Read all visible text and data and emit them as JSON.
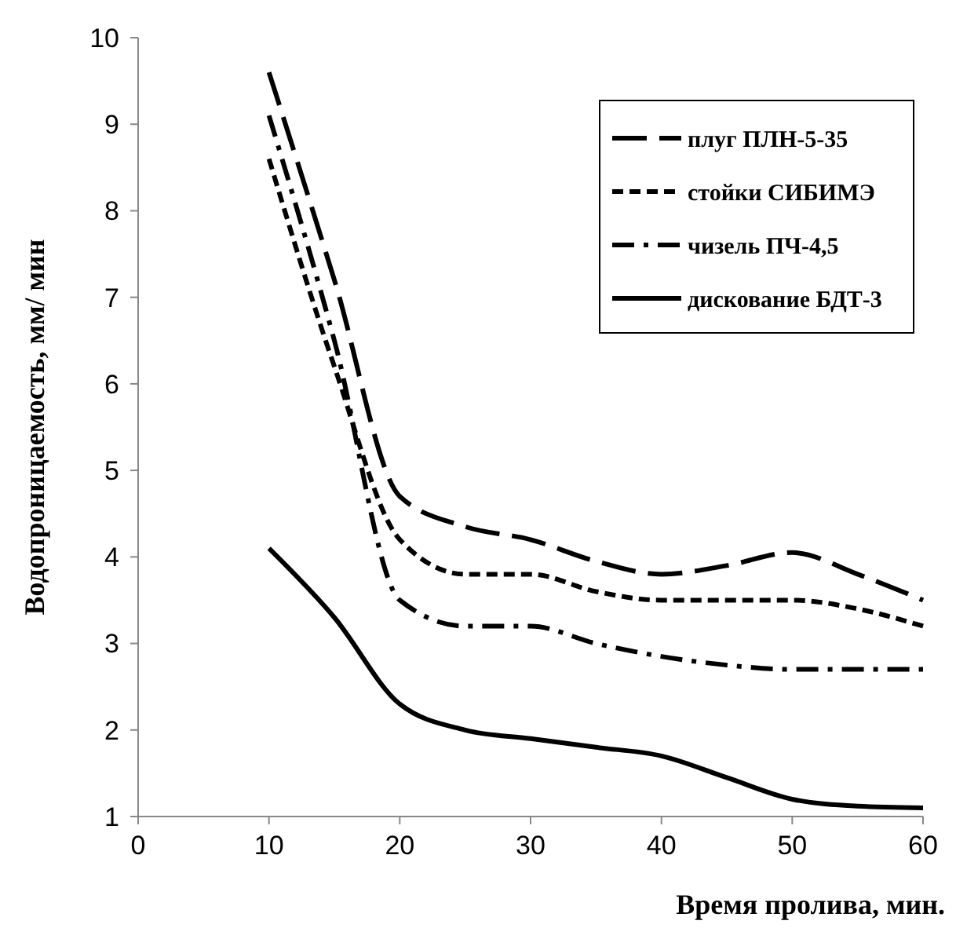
{
  "chart_data": {
    "type": "line",
    "xlabel": "Время пролива, мин.",
    "ylabel": "Водопроницаемость, мм/ мин",
    "x": [
      10,
      15,
      20,
      25,
      30,
      35,
      40,
      45,
      50,
      55,
      60
    ],
    "xlim": [
      0,
      60
    ],
    "xticks": [
      0,
      10,
      20,
      30,
      40,
      50,
      60
    ],
    "ylim": [
      1,
      10
    ],
    "yticks": [
      1,
      2,
      3,
      4,
      5,
      6,
      7,
      8,
      9,
      10
    ],
    "grid": false,
    "legend": "top right",
    "marker": "none",
    "series": [
      {
        "name": "плуг ПЛН-5-35",
        "color": "#000000",
        "line_style": "dashed",
        "values": [
          9.6,
          7.2,
          4.7,
          4.35,
          4.2,
          3.95,
          3.8,
          3.9,
          4.05,
          3.8,
          3.5
        ]
      },
      {
        "name": "стойки СИБИМЭ",
        "color": "#000000",
        "line_style": "dotted",
        "values": [
          8.6,
          6.2,
          4.2,
          3.8,
          3.8,
          3.6,
          3.5,
          3.5,
          3.5,
          3.4,
          3.2
        ]
      },
      {
        "name": "чизель ПЧ-4,5",
        "color": "#000000",
        "line_style": "dashdot",
        "values": [
          9.1,
          6.5,
          3.5,
          3.2,
          3.2,
          3.0,
          2.85,
          2.75,
          2.7,
          2.7,
          2.7
        ]
      },
      {
        "name": "дискование БДТ-3",
        "color": "#000000",
        "line_style": "solid",
        "values": [
          4.1,
          3.3,
          2.3,
          2.0,
          1.9,
          1.8,
          1.7,
          1.45,
          1.2,
          1.12,
          1.1
        ]
      }
    ]
  }
}
